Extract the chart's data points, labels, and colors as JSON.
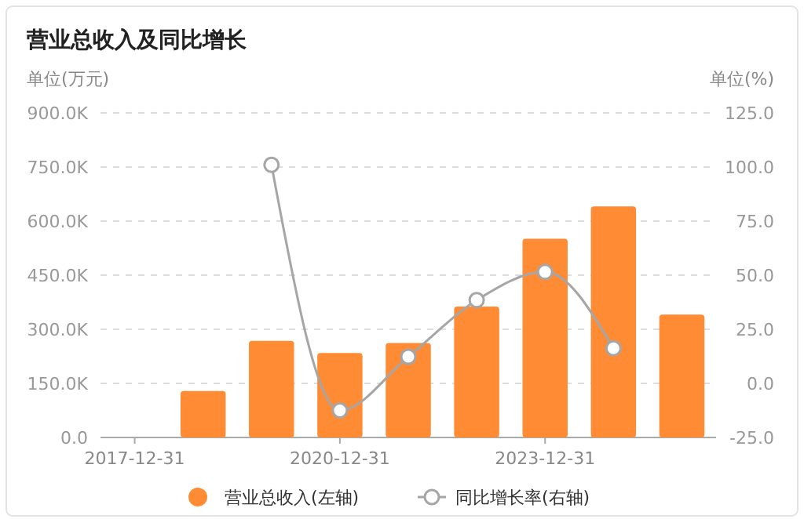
{
  "chart_data": {
    "type": "bar",
    "title": "营业总收入及同比增长",
    "ylabel": "单位(万元)",
    "y2label": "单位(%)",
    "categories": [
      "2017-12-31",
      null,
      null,
      "2020-12-31",
      null,
      null,
      "2023-12-31",
      null,
      null
    ],
    "series": [
      {
        "name": "营业总收入(左轴)",
        "color": "#ff8c35",
        "values": [
          null,
          129000,
          268000,
          234000,
          262000,
          363000,
          551000,
          641000,
          341000
        ]
      },
      {
        "name": "同比增长率(右轴)",
        "type": "line",
        "axis": "y2",
        "color": "#a6a6a6",
        "marker": "circle",
        "values": [
          null,
          null,
          101,
          -12.5,
          12.3,
          38.5,
          51.5,
          16.2,
          null
        ]
      }
    ],
    "ylim": [
      0,
      900000
    ],
    "yticks": [
      {
        "value": 0,
        "label": "0.0"
      },
      {
        "value": 150000,
        "label": "150.0K"
      },
      {
        "value": 300000,
        "label": "300.0K"
      },
      {
        "value": 450000,
        "label": "450.0K"
      },
      {
        "value": 600000,
        "label": "600.0K"
      },
      {
        "value": 750000,
        "label": "750.0K"
      },
      {
        "value": 900000,
        "label": "900.0K"
      }
    ],
    "y2lim": [
      -25,
      125
    ],
    "y2ticks": [
      {
        "value": -25,
        "label": "-25.0"
      },
      {
        "value": 0,
        "label": "0.0"
      },
      {
        "value": 25,
        "label": "25.0"
      },
      {
        "value": 50,
        "label": "50.0"
      },
      {
        "value": 75,
        "label": "75.0"
      },
      {
        "value": 100,
        "label": "100.0"
      },
      {
        "value": 125,
        "label": "125.0"
      }
    ],
    "grid": "y",
    "legend": "bottom"
  }
}
